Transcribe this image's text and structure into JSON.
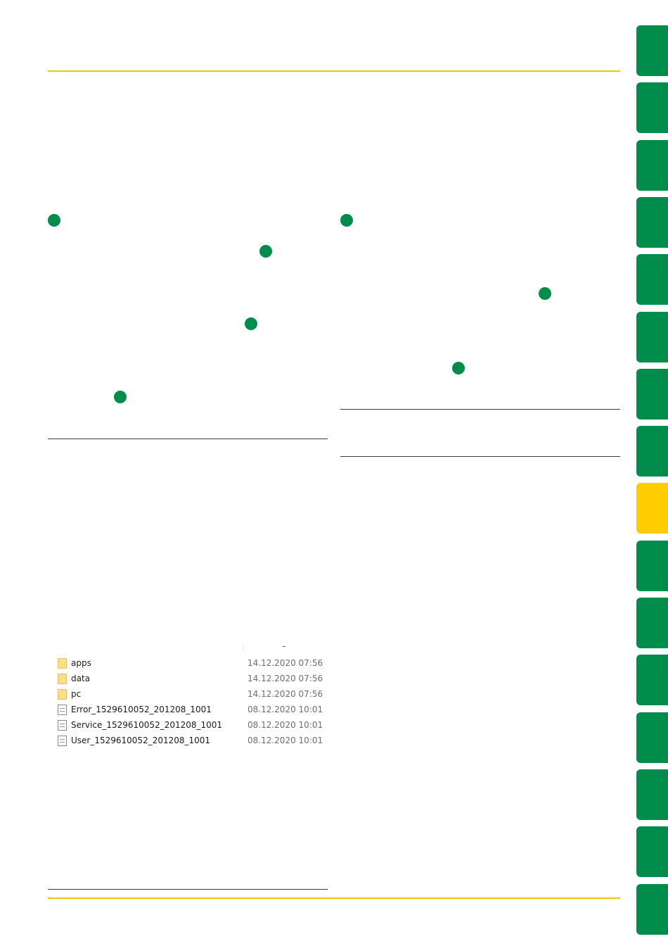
{
  "colors": {
    "accent_green": "#008c4a",
    "accent_yellow": "#ffcc00",
    "rule_yellow": "#f5c400"
  },
  "side_tabs": {
    "count": 16,
    "active_index": 8
  },
  "file_list": [
    {
      "name": "apps",
      "date": "14.12.2020 07:56",
      "icon": "folder-icon"
    },
    {
      "name": "data",
      "date": "14.12.2020 07:56",
      "icon": "folder-icon"
    },
    {
      "name": "pc",
      "date": "14.12.2020 07:56",
      "icon": "folder-icon"
    },
    {
      "name": "Error_1529610052_201208_1001",
      "date": "08.12.2020 10:01",
      "icon": "text-file-icon"
    },
    {
      "name": "Service_1529610052_201208_1001",
      "date": "08.12.2020 10:01",
      "icon": "text-file-icon"
    },
    {
      "name": "User_1529610052_201208_1001",
      "date": "08.12.2020 10:01",
      "icon": "text-file-icon"
    }
  ]
}
